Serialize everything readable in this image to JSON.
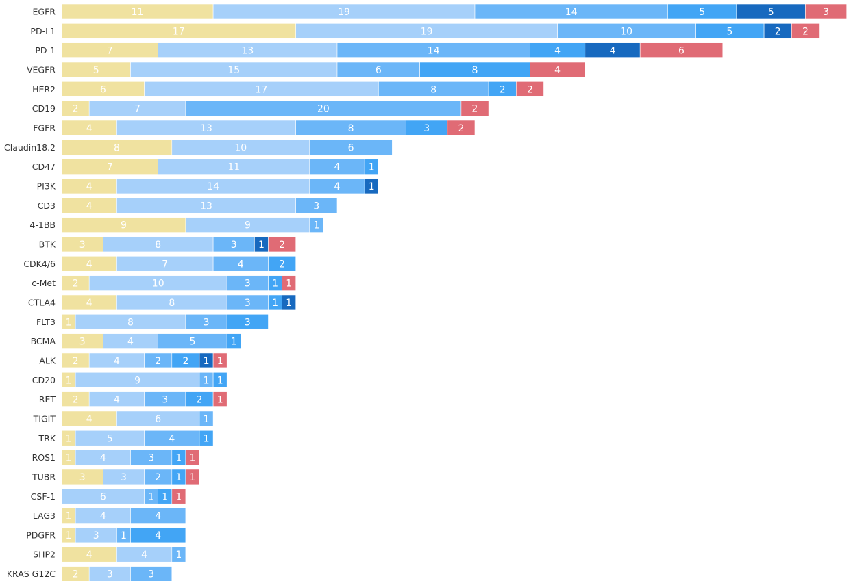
{
  "chart_data": {
    "type": "bar",
    "orientation": "horizontal",
    "stacked": true,
    "title": "",
    "xlabel": "",
    "ylabel": "",
    "grid": false,
    "legend": "none",
    "xlim": [
      0,
      57
    ],
    "categories": [
      "EGFR",
      "PD-L1",
      "PD-1",
      "VEGFR",
      "HER2",
      "CD19",
      "FGFR",
      "Claudin18.2",
      "CD47",
      "PI3K",
      "CD3",
      "4-1BB",
      "BTK",
      "CDK4/6",
      "c-Met",
      "CTLA4",
      "FLT3",
      "BCMA",
      "ALK",
      "CD20",
      "RET",
      "TIGIT",
      "TRK",
      "ROS1",
      "TUBR",
      "CSF-1",
      "LAG3",
      "PDGFR",
      "SHP2",
      "KRAS G12C"
    ],
    "series": [
      {
        "color": "#F0E2A0",
        "values": [
          11,
          17,
          7,
          5,
          6,
          2,
          4,
          8,
          7,
          4,
          4,
          9,
          3,
          4,
          2,
          4,
          1,
          3,
          2,
          1,
          2,
          4,
          1,
          1,
          3,
          0,
          1,
          1,
          4,
          2
        ]
      },
      {
        "color": "#A6D0FA",
        "values": [
          19,
          19,
          13,
          15,
          17,
          7,
          13,
          10,
          11,
          14,
          13,
          9,
          8,
          7,
          10,
          8,
          8,
          4,
          4,
          9,
          4,
          6,
          5,
          4,
          3,
          6,
          4,
          3,
          4,
          3
        ]
      },
      {
        "color": "#6BB6F8",
        "values": [
          14,
          10,
          14,
          6,
          8,
          20,
          8,
          6,
          4,
          4,
          3,
          1,
          3,
          4,
          3,
          3,
          3,
          5,
          2,
          1,
          3,
          1,
          4,
          3,
          2,
          1,
          4,
          1,
          1,
          3
        ]
      },
      {
        "color": "#42A5F5",
        "values": [
          5,
          5,
          4,
          8,
          2,
          0,
          3,
          0,
          1,
          0,
          0,
          0,
          0,
          2,
          1,
          1,
          3,
          1,
          2,
          1,
          2,
          0,
          1,
          1,
          1,
          1,
          0,
          4,
          0,
          0
        ]
      },
      {
        "color": "#1769BF",
        "values": [
          5,
          2,
          4,
          0,
          0,
          0,
          0,
          0,
          0,
          1,
          0,
          0,
          1,
          0,
          0,
          1,
          0,
          0,
          1,
          0,
          0,
          0,
          0,
          0,
          0,
          0,
          0,
          0,
          0,
          0
        ]
      },
      {
        "color": "#E06B75",
        "values": [
          3,
          2,
          6,
          4,
          2,
          2,
          2,
          0,
          0,
          0,
          0,
          0,
          2,
          0,
          1,
          0,
          0,
          0,
          1,
          0,
          1,
          0,
          0,
          1,
          1,
          1,
          0,
          0,
          0,
          0
        ]
      }
    ]
  }
}
